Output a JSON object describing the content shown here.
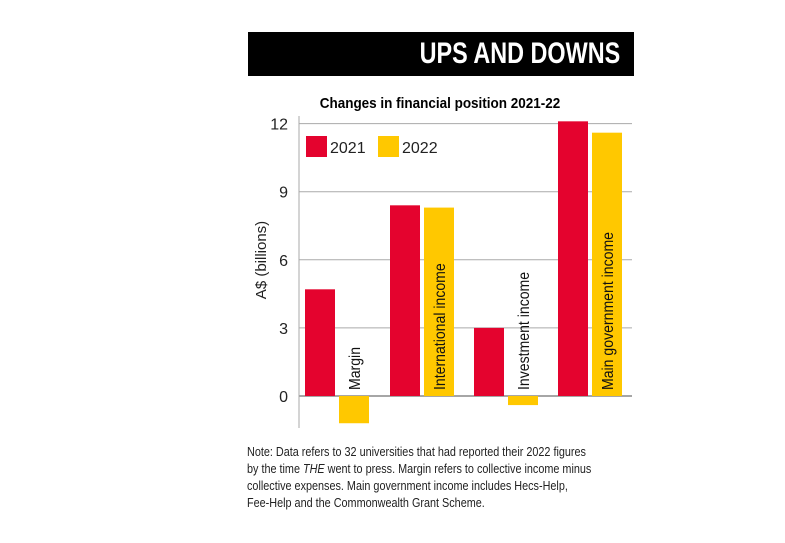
{
  "header": {
    "title": "UPS AND DOWNS"
  },
  "chart_data": {
    "type": "bar",
    "title": "Changes in financial position 2021-22",
    "ylabel": "A$ (billions)",
    "xlabel": "",
    "ylim": [
      -1.5,
      12
    ],
    "yticks": [
      "0",
      "3",
      "6",
      "9",
      "12"
    ],
    "grid": true,
    "legend": "top-left",
    "categories": [
      "Margin",
      "International income",
      "Investment income",
      "Main government income"
    ],
    "series": [
      {
        "name": "2021",
        "color": "#e4032e",
        "values": [
          4.7,
          8.4,
          3.0,
          12.1
        ]
      },
      {
        "name": "2022",
        "color": "#ffc800",
        "values": [
          -1.2,
          8.3,
          -0.4,
          11.6
        ]
      }
    ]
  },
  "note": {
    "lines": [
      "Note: Data refers to 32 universities that had reported their 2022 figures",
      "collective expenses. Main government income includes Hecs-Help,",
      "Fee-Help and the Commonwealth Grant Scheme."
    ],
    "line2_pre": "by the time ",
    "line2_italic": "THE",
    "line2_post": " went to press. Margin refers to collective income minus"
  }
}
